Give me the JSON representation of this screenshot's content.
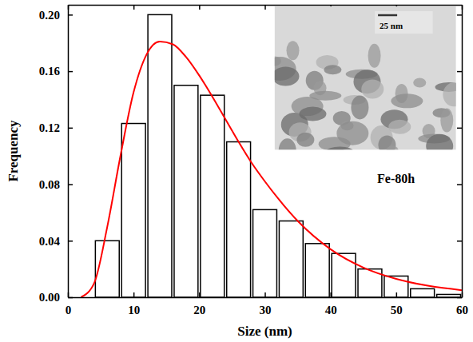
{
  "chart_data": {
    "type": "histogram",
    "x_label": "Size (nm)",
    "y_label": "Frequency",
    "annotation": "Fe-80h",
    "inset_scale_label": "25 nm",
    "bins": [
      4,
      8,
      12,
      16,
      20,
      24,
      28,
      32,
      36,
      40,
      44,
      48,
      52,
      56,
      60
    ],
    "values": [
      0.04,
      0.123,
      0.2,
      0.15,
      0.143,
      0.11,
      0.062,
      0.054,
      0.038,
      0.031,
      0.02,
      0.015,
      0.006,
      0.002
    ],
    "color": "#ffffff",
    "series": [
      {
        "type": "line",
        "color": "#ff0000",
        "x": [
          2,
          4,
          6,
          8,
          10,
          12,
          14,
          16,
          18,
          20,
          22,
          24,
          26,
          28,
          30,
          32,
          35,
          40,
          45,
          50,
          55,
          60
        ],
        "values": [
          0.0,
          0.01,
          0.05,
          0.1,
          0.145,
          0.172,
          0.181,
          0.179,
          0.17,
          0.157,
          0.142,
          0.126,
          0.11,
          0.095,
          0.082,
          0.07,
          0.054,
          0.034,
          0.021,
          0.013,
          0.008,
          0.005
        ]
      }
    ],
    "xlim": [
      0,
      60
    ],
    "xticks": [
      0,
      10,
      20,
      30,
      40,
      50,
      60
    ],
    "ylim": [
      0,
      0.207
    ],
    "yticks": [
      {
        "value": 0,
        "label": "0.00"
      },
      {
        "value": 0.04,
        "label": "0.04"
      },
      {
        "value": 0.08,
        "label": "0.08"
      },
      {
        "value": 0.12,
        "label": "0.12"
      },
      {
        "value": 0.16,
        "label": "0.16"
      },
      {
        "value": 0.2,
        "label": "0.20"
      }
    ],
    "grid": false
  }
}
